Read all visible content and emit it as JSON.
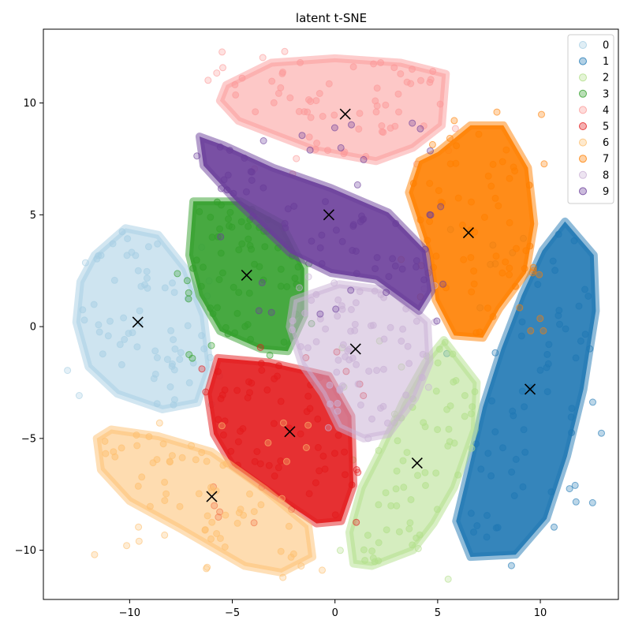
{
  "chart_data": {
    "type": "scatter",
    "title": "latent t-SNE",
    "xlabel": "",
    "ylabel": "",
    "xlim": [
      -14.2,
      13.8
    ],
    "ylim": [
      -12.2,
      13.3
    ],
    "xticks": [
      -10,
      -5,
      0,
      5,
      10
    ],
    "yticks": [
      -10,
      -5,
      0,
      5,
      10
    ],
    "grid": false,
    "legend_position": "top-right",
    "centroid_marker": "x",
    "series": [
      {
        "name": "0",
        "color": "#a6cee3",
        "centroid": [
          -9.6,
          0.2
        ]
      },
      {
        "name": "1",
        "color": "#1f78b4",
        "centroid": [
          9.5,
          -2.8
        ]
      },
      {
        "name": "2",
        "color": "#b2df8a",
        "centroid": [
          4.0,
          -6.1
        ]
      },
      {
        "name": "3",
        "color": "#33a02c",
        "centroid": [
          -4.3,
          2.3
        ]
      },
      {
        "name": "4",
        "color": "#fb9a99",
        "centroid": [
          0.5,
          9.5
        ]
      },
      {
        "name": "5",
        "color": "#e31a1c",
        "centroid": [
          -2.2,
          -4.7
        ]
      },
      {
        "name": "6",
        "color": "#fdbf6f",
        "centroid": [
          -6.0,
          -7.6
        ]
      },
      {
        "name": "7",
        "color": "#ff7f00",
        "centroid": [
          6.5,
          4.2
        ]
      },
      {
        "name": "8",
        "color": "#cab2d6",
        "centroid": [
          1.0,
          -1.0
        ]
      },
      {
        "name": "9",
        "color": "#6a3d9a",
        "centroid": [
          -0.3,
          5.0
        ]
      }
    ]
  }
}
